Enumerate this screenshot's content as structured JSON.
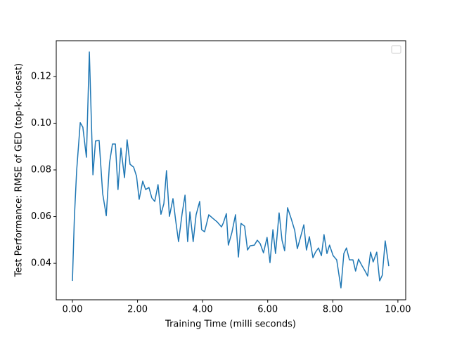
{
  "chart_data": {
    "type": "line",
    "xlabel": "Training Time (milli seconds)",
    "ylabel": "Test Performance: RMSE of GED (top-k-closest)",
    "xlim": [
      -0.497,
      10.24
    ],
    "ylim": [
      0.0244,
      0.1353
    ],
    "xticks": [
      {
        "value": 0,
        "label": "0.00"
      },
      {
        "value": 2,
        "label": "2.00"
      },
      {
        "value": 4,
        "label": "4.00"
      },
      {
        "value": 6,
        "label": "6.00"
      },
      {
        "value": 8,
        "label": "8.00"
      },
      {
        "value": 10,
        "label": "10.00"
      }
    ],
    "yticks": [
      0.04,
      0.06,
      0.08,
      {
        "value": 0.1,
        "label": "0.10"
      },
      0.12
    ],
    "grid": false,
    "series": [
      {
        "color": "#1f77b4",
        "x": [
          0,
          0.06,
          0.13,
          0.24,
          0.32,
          0.43,
          0.52,
          0.63,
          0.71,
          0.82,
          0.93,
          1.04,
          1.14,
          1.23,
          1.32,
          1.4,
          1.49,
          1.6,
          1.68,
          1.77,
          1.88,
          1.97,
          2.05,
          2.16,
          2.25,
          2.35,
          2.44,
          2.53,
          2.63,
          2.72,
          2.81,
          2.89,
          2.98,
          3.09,
          3.17,
          3.26,
          3.37,
          3.46,
          3.54,
          3.61,
          3.71,
          3.8,
          3.91,
          3.97,
          4.06,
          4.19,
          4.32,
          4.45,
          4.58,
          4.64,
          4.73,
          4.79,
          4.9,
          5.01,
          5.1,
          5.18,
          5.29,
          5.38,
          5.46,
          5.59,
          5.68,
          5.77,
          5.87,
          5.98,
          6.07,
          6.16,
          6.24,
          6.35,
          6.44,
          6.52,
          6.61,
          6.72,
          6.83,
          6.91,
          7.0,
          7.11,
          7.19,
          7.28,
          7.39,
          7.47,
          7.56,
          7.65,
          7.73,
          7.82,
          7.9,
          8.01,
          8.12,
          8.25,
          8.34,
          8.42,
          8.51,
          8.62,
          8.7,
          8.79,
          8.88,
          8.98,
          9.07,
          9.16,
          9.24,
          9.35,
          9.44,
          9.52,
          9.61,
          9.72
        ],
        "values": [
          0.0325,
          0.0596,
          0.0797,
          0.1002,
          0.0983,
          0.0854,
          0.1305,
          0.0779,
          0.0924,
          0.0926,
          0.0698,
          0.0604,
          0.083,
          0.0911,
          0.0911,
          0.0716,
          0.0893,
          0.0767,
          0.0929,
          0.0824,
          0.0812,
          0.0773,
          0.0674,
          0.0752,
          0.0716,
          0.0725,
          0.068,
          0.0665,
          0.0737,
          0.061,
          0.0656,
          0.0797,
          0.0601,
          0.0677,
          0.0586,
          0.0493,
          0.0613,
          0.0692,
          0.0493,
          0.062,
          0.0493,
          0.0608,
          0.0665,
          0.0544,
          0.0535,
          0.0608,
          0.0592,
          0.0577,
          0.0556,
          0.0574,
          0.0613,
          0.0478,
          0.0532,
          0.0608,
          0.0427,
          0.0571,
          0.0559,
          0.0457,
          0.0475,
          0.0478,
          0.0499,
          0.0484,
          0.0445,
          0.0511,
          0.0403,
          0.0544,
          0.0442,
          0.0616,
          0.0499,
          0.0454,
          0.0638,
          0.0592,
          0.0541,
          0.0463,
          0.0508,
          0.0565,
          0.0457,
          0.0514,
          0.0424,
          0.0448,
          0.0466,
          0.0433,
          0.0523,
          0.0442,
          0.0478,
          0.0433,
          0.0415,
          0.0295,
          0.0442,
          0.0466,
          0.0415,
          0.0415,
          0.0367,
          0.0418,
          0.0394,
          0.037,
          0.0346,
          0.0448,
          0.0406,
          0.0448,
          0.0325,
          0.0349,
          0.0496,
          0.0388
        ]
      }
    ]
  }
}
